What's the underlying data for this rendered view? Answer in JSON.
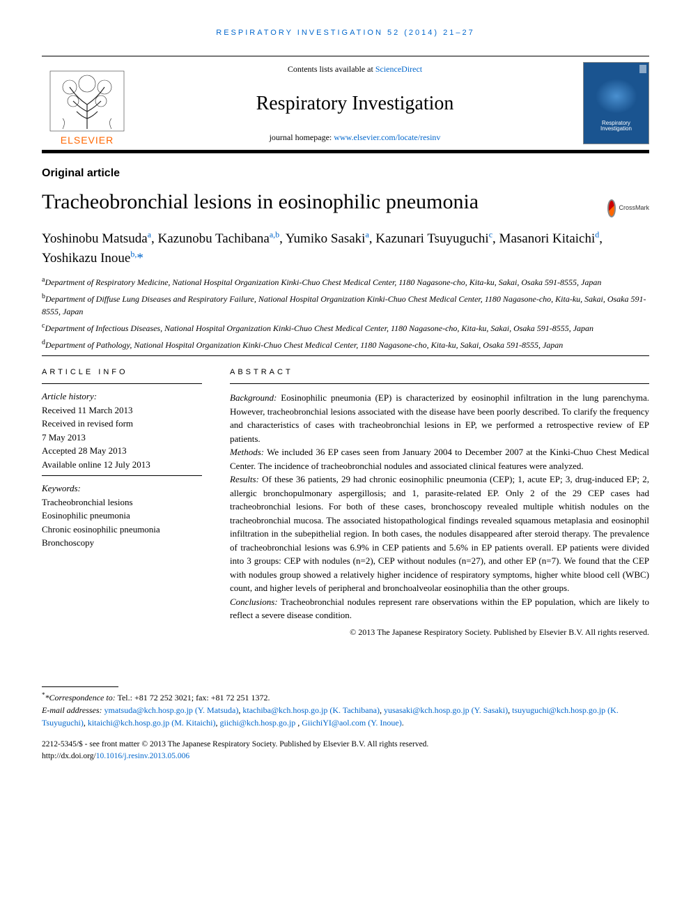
{
  "running_head": "RESPIRATORY INVESTIGATION 52 (2014) 21–27",
  "masthead": {
    "contents_prefix": "Contents lists available at ",
    "contents_link": "ScienceDirect",
    "journal": "Respiratory Investigation",
    "homepage_prefix": "journal homepage: ",
    "homepage_link": "www.elsevier.com/locate/resinv",
    "publisher": "ELSEVIER",
    "cover_label": "Respiratory\nInvestigation"
  },
  "section_label": "Original article",
  "title": "Tracheobronchial lesions in eosinophilic pneumonia",
  "crossmark_label": "CrossMark",
  "authors_html": "Yoshinobu Matsuda<sup>a</sup>, Kazunobu Tachibana<sup>a,b</sup>, Yumiko Sasaki<sup>a</sup>, Kazunari Tsuyuguchi<sup>c</sup>, Masanori Kitaichi<sup>d</sup>, Yoshikazu Inoue<sup>b,</sup><span class=\"corr\">*</span>",
  "affiliations": [
    {
      "sup": "a",
      "text": "Department of Respiratory Medicine, National Hospital Organization Kinki-Chuo Chest Medical Center, 1180 Nagasone-cho, Kita-ku, Sakai, Osaka 591-8555, Japan"
    },
    {
      "sup": "b",
      "text": "Department of Diffuse Lung Diseases and Respiratory Failure, National Hospital Organization Kinki-Chuo Chest Medical Center, 1180 Nagasone-cho, Kita-ku, Sakai, Osaka 591-8555, Japan"
    },
    {
      "sup": "c",
      "text": "Department of Infectious Diseases, National Hospital Organization Kinki-Chuo Chest Medical Center, 1180 Nagasone-cho, Kita-ku, Sakai, Osaka 591-8555, Japan"
    },
    {
      "sup": "d",
      "text": "Department of Pathology, National Hospital Organization Kinki-Chuo Chest Medical Center, 1180 Nagasone-cho, Kita-ku, Sakai, Osaka 591-8555, Japan"
    }
  ],
  "article_info": {
    "heading": "article info",
    "history_label": "Article history:",
    "received": "Received 11 March 2013",
    "revised1": "Received in revised form",
    "revised2": "7 May 2013",
    "accepted": "Accepted 28 May 2013",
    "online": "Available online 12 July 2013",
    "keywords_label": "Keywords:",
    "keywords": [
      "Tracheobronchial lesions",
      "Eosinophilic pneumonia",
      "Chronic eosinophilic pneumonia",
      "Bronchoscopy"
    ]
  },
  "abstract": {
    "heading": "abstract",
    "sections": [
      {
        "label": "Background:",
        "text": " Eosinophilic pneumonia (EP) is characterized by eosinophil infiltration in the lung parenchyma. However, tracheobronchial lesions associated with the disease have been poorly described. To clarify the frequency and characteristics of cases with tracheobronchial lesions in EP, we performed a retrospective review of EP patients."
      },
      {
        "label": "Methods:",
        "text": " We included 36 EP cases seen from January 2004 to December 2007 at the Kinki-Chuo Chest Medical Center. The incidence of tracheobronchial nodules and associated clinical features were analyzed."
      },
      {
        "label": "Results:",
        "text": " Of these 36 patients, 29 had chronic eosinophilic pneumonia (CEP); 1, acute EP; 3, drug-induced EP; 2, allergic bronchopulmonary aspergillosis; and 1, parasite-related EP. Only 2 of the 29 CEP cases had tracheobronchial lesions. For both of these cases, bronchoscopy revealed multiple whitish nodules on the tracheobronchial mucosa. The associated histopathological findings revealed squamous metaplasia and eosinophil infiltration in the subepithelial region. In both cases, the nodules disappeared after steroid therapy. The prevalence of tracheobronchial lesions was 6.9% in CEP patients and 5.6% in EP patients overall. EP patients were divided into 3 groups: CEP with nodules (n=2), CEP without nodules (n=27), and other EP (n=7). We found that the CEP with nodules group showed a relatively higher incidence of respiratory symptoms, higher white blood cell (WBC) count, and higher levels of peripheral and bronchoalveolar eosinophilia than the other groups."
      },
      {
        "label": "Conclusions:",
        "text": " Tracheobronchial nodules represent rare observations within the EP population, which are likely to reflect a severe disease condition."
      }
    ],
    "copyright": "© 2013 The Japanese Respiratory Society. Published by Elsevier B.V. All rights reserved."
  },
  "footnotes": {
    "corr_label": "*Correspondence to:",
    "corr_text": " Tel.: +81 72 252 3021; fax: +81 72 251 1372.",
    "email_label": "E-mail addresses: ",
    "emails": [
      {
        "addr": "ymatsuda@kch.hosp.go.jp",
        "who": "(Y. Matsuda)"
      },
      {
        "addr": "ktachiba@kch.hosp.go.jp",
        "who": "(K. Tachibana)"
      },
      {
        "addr": "yusasaki@kch.hosp.go.jp",
        "who": "(Y. Sasaki)"
      },
      {
        "addr": "tsuyuguchi@kch.hosp.go.jp",
        "who": "(K. Tsuyuguchi)"
      },
      {
        "addr": "kitaichi@kch.hosp.go.jp",
        "who": "(M. Kitaichi)"
      },
      {
        "addr": "giichi@kch.hosp.go.jp",
        "who": ""
      },
      {
        "addr": "GiichiYI@aol.com",
        "who": "(Y. Inoue)"
      }
    ]
  },
  "bottom": {
    "issn_line": "2212-5345/$ - see front matter © 2013 The Japanese Respiratory Society. Published by Elsevier B.V. All rights reserved.",
    "doi_prefix": "http://dx.doi.org/",
    "doi": "10.1016/j.resinv.2013.05.006"
  },
  "colors": {
    "link": "#0066cc",
    "elsevier_orange": "#ff6600",
    "cover_bg": "#1a5490"
  }
}
